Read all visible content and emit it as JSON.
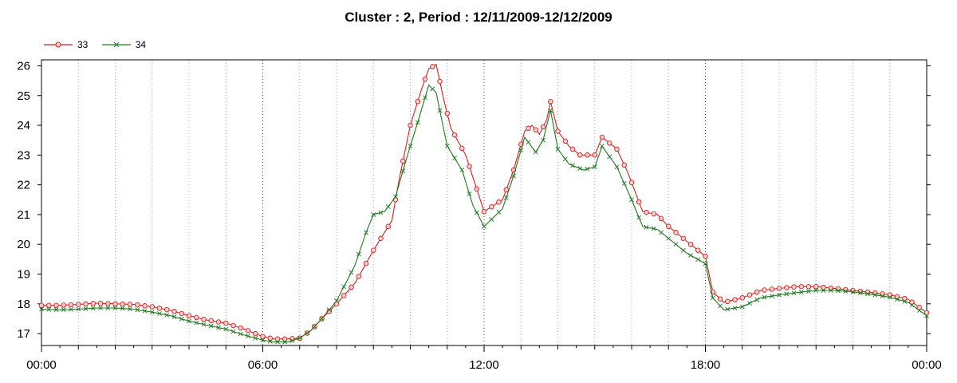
{
  "chart_data": {
    "type": "line",
    "title": "Cluster : 2, Period : 12/11/2009-12/12/2009",
    "xlabel": "",
    "ylabel": "",
    "x_tick_labels": [
      "00:00",
      "06:00",
      "12:00",
      "18:00",
      "00:00"
    ],
    "x_range_hours": [
      0,
      24
    ],
    "ylim": [
      16.6,
      26.2
    ],
    "y_ticks": [
      17,
      18,
      19,
      20,
      21,
      22,
      23,
      24,
      25,
      26
    ],
    "grid": "vertical dotted, every hour; darker every 6 hours",
    "legend_placement": "top-left",
    "series": [
      {
        "name": "33",
        "color": "#d42020",
        "marker": "circle",
        "points": [
          [
            0,
            17.95
          ],
          [
            0.5,
            17.95
          ],
          [
            1,
            17.98
          ],
          [
            1.5,
            18.02
          ],
          [
            2,
            18.0
          ],
          [
            2.5,
            17.98
          ],
          [
            3,
            17.9
          ],
          [
            3.5,
            17.78
          ],
          [
            4,
            17.6
          ],
          [
            4.5,
            17.45
          ],
          [
            5,
            17.35
          ],
          [
            5.5,
            17.15
          ],
          [
            6,
            16.9
          ],
          [
            6.3,
            16.82
          ],
          [
            6.7,
            16.82
          ],
          [
            7,
            16.85
          ],
          [
            7.3,
            17.1
          ],
          [
            7.6,
            17.5
          ],
          [
            8,
            18.0
          ],
          [
            8.5,
            18.7
          ],
          [
            9,
            19.8
          ],
          [
            9.5,
            20.8
          ],
          [
            9.7,
            22.2
          ],
          [
            10,
            24.0
          ],
          [
            10.3,
            25.2
          ],
          [
            10.5,
            25.9
          ],
          [
            10.7,
            26.05
          ],
          [
            10.9,
            24.9
          ],
          [
            11.1,
            23.9
          ],
          [
            11.5,
            23.0
          ],
          [
            12,
            21.1
          ],
          [
            12.5,
            21.5
          ],
          [
            12.8,
            22.5
          ],
          [
            13.1,
            23.8
          ],
          [
            13.3,
            24.0
          ],
          [
            13.5,
            23.7
          ],
          [
            13.7,
            24.2
          ],
          [
            13.8,
            24.8
          ],
          [
            14.0,
            23.8
          ],
          [
            14.3,
            23.3
          ],
          [
            14.6,
            23.0
          ],
          [
            15,
            23.0
          ],
          [
            15.2,
            23.6
          ],
          [
            15.6,
            23.2
          ],
          [
            15.9,
            22.4
          ],
          [
            16.3,
            21.1
          ],
          [
            16.7,
            21.0
          ],
          [
            17,
            20.6
          ],
          [
            17.5,
            20.1
          ],
          [
            18,
            19.6
          ],
          [
            18.2,
            18.4
          ],
          [
            18.5,
            18.05
          ],
          [
            19,
            18.2
          ],
          [
            19.5,
            18.45
          ],
          [
            20,
            18.52
          ],
          [
            20.5,
            18.58
          ],
          [
            21,
            18.58
          ],
          [
            21.5,
            18.52
          ],
          [
            22,
            18.45
          ],
          [
            22.5,
            18.38
          ],
          [
            23,
            18.3
          ],
          [
            23.5,
            18.15
          ],
          [
            24,
            17.7
          ]
        ]
      },
      {
        "name": "34",
        "color": "#1e7a1e",
        "marker": "x",
        "points": [
          [
            0,
            17.82
          ],
          [
            0.5,
            17.8
          ],
          [
            1,
            17.82
          ],
          [
            1.5,
            17.86
          ],
          [
            2,
            17.86
          ],
          [
            2.5,
            17.82
          ],
          [
            3,
            17.72
          ],
          [
            3.5,
            17.6
          ],
          [
            4,
            17.42
          ],
          [
            4.5,
            17.28
          ],
          [
            5,
            17.15
          ],
          [
            5.5,
            16.95
          ],
          [
            6,
            16.78
          ],
          [
            6.3,
            16.72
          ],
          [
            6.7,
            16.72
          ],
          [
            7,
            16.85
          ],
          [
            7.3,
            17.1
          ],
          [
            7.6,
            17.5
          ],
          [
            8,
            18.1
          ],
          [
            8.5,
            19.3
          ],
          [
            8.8,
            20.4
          ],
          [
            9,
            21.0
          ],
          [
            9.3,
            21.1
          ],
          [
            9.6,
            21.6
          ],
          [
            9.9,
            22.9
          ],
          [
            10.2,
            24.1
          ],
          [
            10.5,
            25.35
          ],
          [
            10.7,
            25.1
          ],
          [
            11,
            23.3
          ],
          [
            11.4,
            22.5
          ],
          [
            11.7,
            21.3
          ],
          [
            12,
            20.6
          ],
          [
            12.5,
            21.2
          ],
          [
            12.8,
            22.3
          ],
          [
            13.1,
            23.6
          ],
          [
            13.4,
            23.1
          ],
          [
            13.6,
            23.5
          ],
          [
            13.8,
            24.5
          ],
          [
            14.0,
            23.2
          ],
          [
            14.3,
            22.7
          ],
          [
            14.7,
            22.5
          ],
          [
            15,
            22.6
          ],
          [
            15.2,
            23.3
          ],
          [
            15.6,
            22.6
          ],
          [
            16,
            21.5
          ],
          [
            16.3,
            20.6
          ],
          [
            16.7,
            20.5
          ],
          [
            17,
            20.2
          ],
          [
            17.5,
            19.7
          ],
          [
            18,
            19.35
          ],
          [
            18.2,
            18.2
          ],
          [
            18.5,
            17.8
          ],
          [
            19,
            17.9
          ],
          [
            19.5,
            18.2
          ],
          [
            20,
            18.3
          ],
          [
            20.5,
            18.38
          ],
          [
            21,
            18.45
          ],
          [
            21.5,
            18.45
          ],
          [
            22,
            18.4
          ],
          [
            22.5,
            18.32
          ],
          [
            23,
            18.22
          ],
          [
            23.5,
            18.05
          ],
          [
            24,
            17.6
          ]
        ]
      }
    ]
  }
}
